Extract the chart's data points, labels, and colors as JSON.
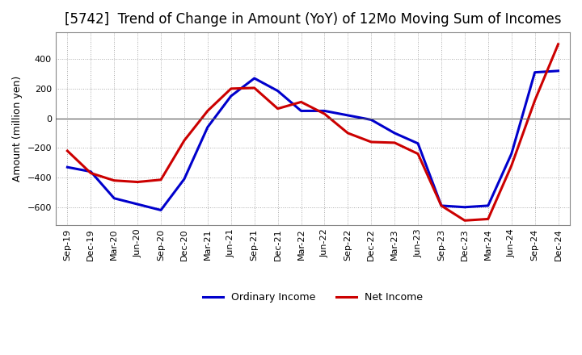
{
  "title": "[5742]  Trend of Change in Amount (YoY) of 12Mo Moving Sum of Incomes",
  "ylabel": "Amount (million yen)",
  "x_labels": [
    "Sep-19",
    "Dec-19",
    "Mar-20",
    "Jun-20",
    "Sep-20",
    "Dec-20",
    "Mar-21",
    "Jun-21",
    "Sep-21",
    "Dec-21",
    "Mar-22",
    "Jun-22",
    "Sep-22",
    "Dec-22",
    "Mar-23",
    "Jun-23",
    "Sep-23",
    "Dec-23",
    "Mar-24",
    "Jun-24",
    "Sep-24",
    "Dec-24"
  ],
  "ordinary_income": [
    -330,
    -360,
    -540,
    -580,
    -620,
    -410,
    -60,
    150,
    270,
    185,
    50,
    50,
    20,
    -10,
    -100,
    -170,
    -590,
    -600,
    -590,
    -240,
    310,
    320
  ],
  "net_income": [
    -220,
    -370,
    -420,
    -430,
    -415,
    -150,
    50,
    200,
    205,
    65,
    110,
    30,
    -100,
    -160,
    -165,
    -240,
    -590,
    -690,
    -680,
    -320,
    120,
    500
  ],
  "ordinary_income_color": "#0000cc",
  "net_income_color": "#cc0000",
  "line_width": 2.2,
  "ylim": [
    -720,
    580
  ],
  "yticks": [
    -600,
    -400,
    -200,
    0,
    200,
    400
  ],
  "grid_color": "#aaaaaa",
  "background_color": "#ffffff",
  "title_fontsize": 12,
  "legend_labels": [
    "Ordinary Income",
    "Net Income"
  ]
}
